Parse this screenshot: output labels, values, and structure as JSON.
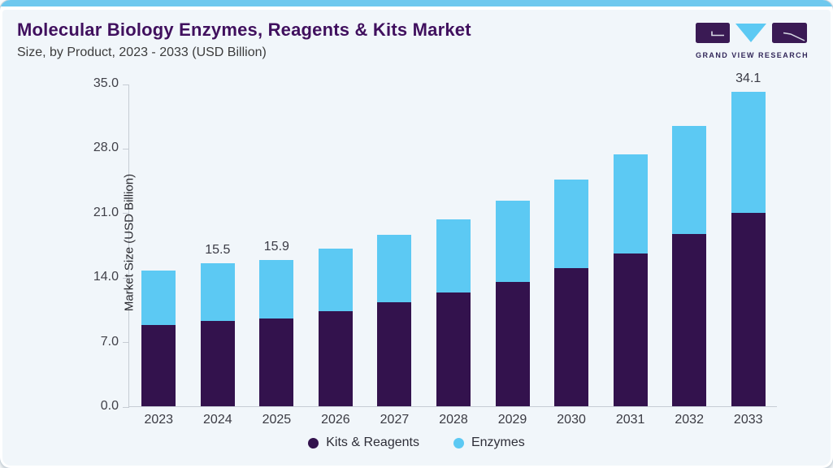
{
  "header": {
    "title": "Molecular Biology Enzymes, Reagents & Kits Market",
    "subtitle": "Size, by Product, 2023 - 2033 (USD Billion)"
  },
  "logo": {
    "text": "GRAND VIEW RESEARCH"
  },
  "colors": {
    "kits_reagents": "#33124d",
    "enzymes": "#5cc9f3",
    "card_background": "#f1f6fa",
    "top_strip": "#6ec8ee",
    "title_text": "#40105e",
    "axis_line": "#c6ccd4",
    "logo_purple": "#3a1a54",
    "logo_cyan": "#5cc9f3"
  },
  "chart_data": {
    "type": "bar",
    "stacked": true,
    "title": "Molecular Biology Enzymes, Reagents & Kits Market Size, by Product, 2023 - 2033 (USD Billion)",
    "categories": [
      "2023",
      "2024",
      "2025",
      "2026",
      "2027",
      "2028",
      "2029",
      "2030",
      "2031",
      "2032",
      "2033"
    ],
    "series": [
      {
        "name": "Kits & Reagents",
        "color": "#33124d",
        "values": [
          8.8,
          9.3,
          9.5,
          10.3,
          11.3,
          12.3,
          13.5,
          15.0,
          16.6,
          18.7,
          21.0
        ]
      },
      {
        "name": "Enzymes",
        "color": "#5cc9f3",
        "values": [
          5.9,
          6.2,
          6.4,
          6.8,
          7.3,
          8.0,
          8.8,
          9.6,
          10.7,
          11.7,
          13.1
        ]
      }
    ],
    "totals": [
      14.7,
      15.5,
      15.9,
      17.1,
      18.6,
      20.3,
      22.3,
      24.6,
      27.3,
      30.4,
      34.1
    ],
    "data_labels": [
      "",
      "15.5",
      "15.9",
      "",
      "",
      "",
      "",
      "",
      "",
      "",
      "34.1"
    ],
    "xlabel": "",
    "ylabel": "Market Size (USD Billion)",
    "ylim": [
      0,
      35
    ],
    "ytick_values": [
      0,
      7,
      14,
      21,
      28,
      35
    ],
    "ytick_labels": [
      "0.0",
      "7.0",
      "14.0",
      "21.0",
      "28.0",
      "35.0"
    ],
    "grid": false,
    "legend_position": "bottom"
  }
}
